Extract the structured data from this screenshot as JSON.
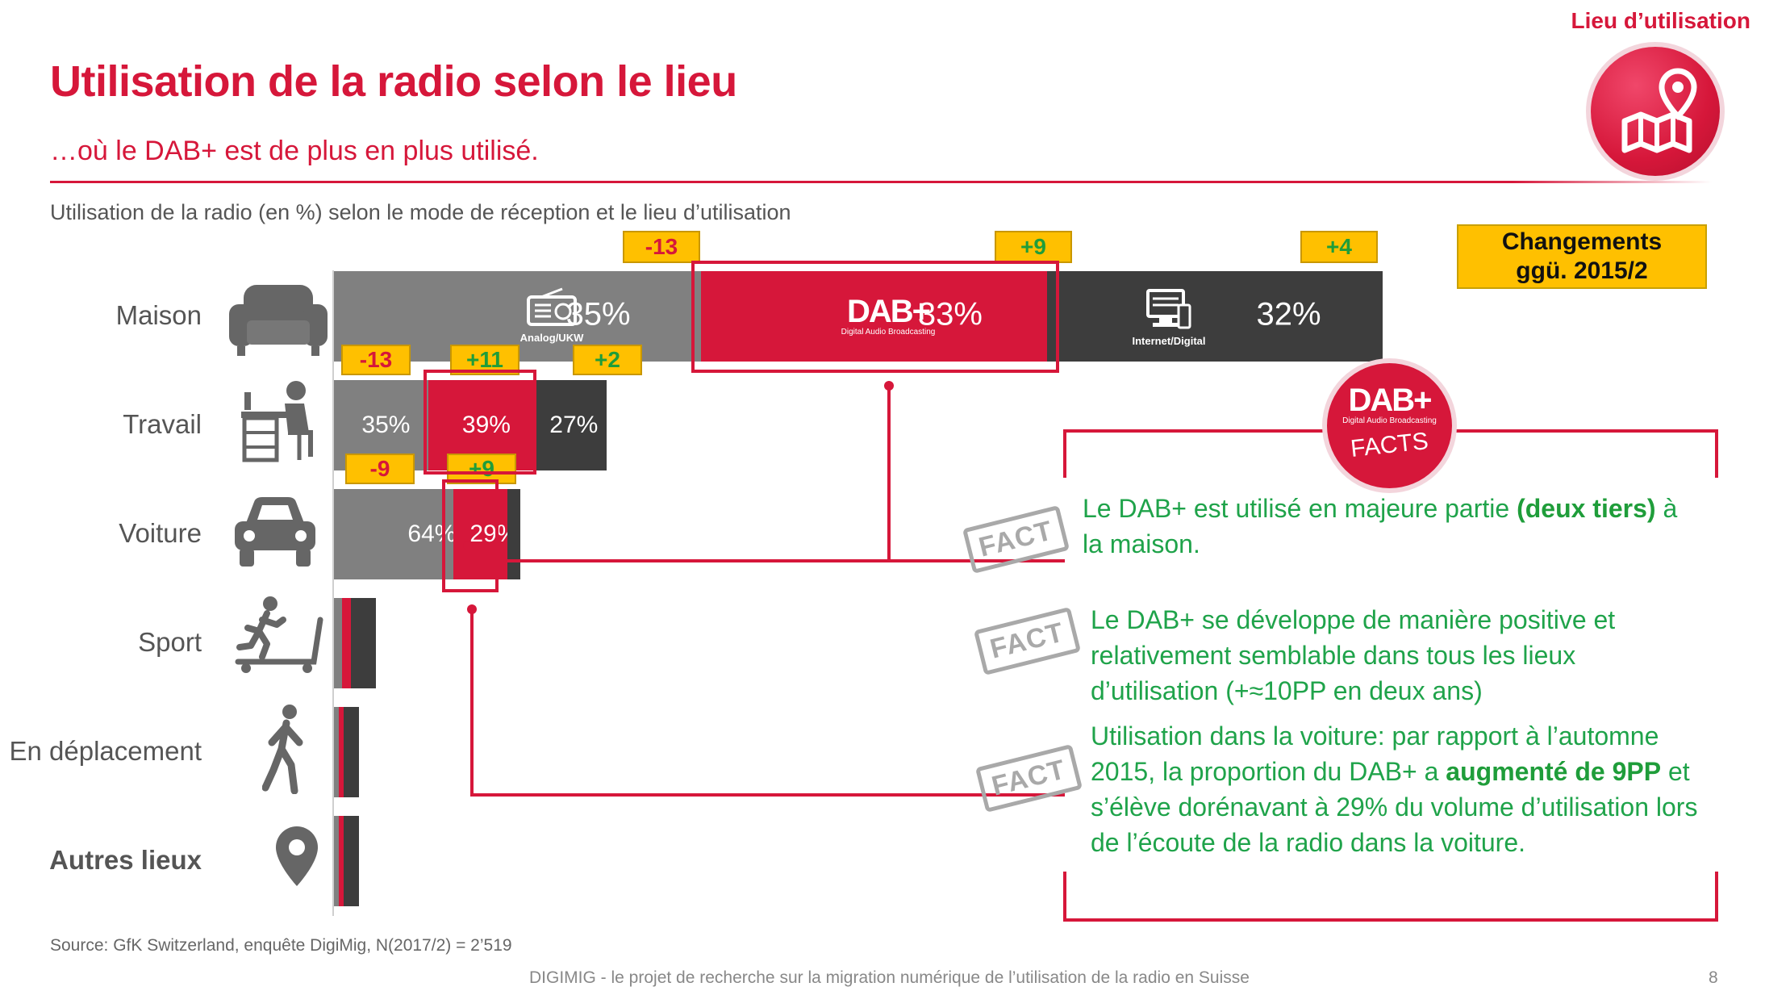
{
  "corner_label": "Lieu d’utilisation",
  "title": "Utilisation de la radio selon le lieu",
  "subtitle": "…où le DAB+ est de plus en plus utilisé.",
  "caption": "Utilisation de la radio (en %) selon le mode de réception et le lieu d’utilisation",
  "changes_box": {
    "line1": "Changements",
    "line2": "ggü. 2015/2"
  },
  "icons": {
    "corner": "map-pin-icon",
    "rows": [
      "sofa-icon",
      "desk-worker-icon",
      "car-icon",
      "treadmill-icon",
      "walking-person-icon",
      "location-pin-icon"
    ],
    "analog": "radio-icon",
    "digital": "computer-icon"
  },
  "segment_captions": {
    "analog": "Analog/UKW",
    "dab_logo": "DAB+",
    "dab_tagline": "Digital Audio Broadcasting",
    "digital": "Internet/Digital"
  },
  "colors": {
    "analog": "#808080",
    "dab": "#d6173a",
    "digital": "#3d3d3d",
    "change_box": "#ffc000",
    "positive": "#1f9d3a",
    "negative": "#d6173a"
  },
  "chart_data": {
    "type": "bar",
    "orientation": "horizontal",
    "stacked": true,
    "categories": [
      "Maison",
      "Travail",
      "Voiture",
      "Sport",
      "En déplacement",
      "Autres lieux"
    ],
    "category_totals_relative": [
      1.0,
      0.26,
      0.178,
      0.04,
      0.024,
      0.024
    ],
    "series": [
      {
        "name": "Analog/UKW",
        "values": [
          35,
          35,
          64,
          null,
          null,
          null
        ],
        "changes": [
          "-13",
          "-13",
          "-9",
          null,
          null,
          null
        ]
      },
      {
        "name": "DAB+",
        "values": [
          33,
          39,
          29,
          null,
          null,
          null
        ],
        "changes": [
          "+9",
          "+11",
          "+9",
          null,
          null,
          null
        ]
      },
      {
        "name": "Internet/Digital",
        "values": [
          32,
          27,
          7,
          null,
          null,
          null
        ],
        "changes": [
          "+4",
          "+2",
          null,
          null,
          null,
          null
        ]
      }
    ],
    "value_labels": [
      [
        "35%",
        "33%",
        "32%"
      ],
      [
        "35%",
        "39%",
        "27%"
      ],
      [
        "64%",
        "29%",
        ""
      ],
      [
        "",
        "",
        ""
      ],
      [
        "",
        "",
        ""
      ],
      [
        "",
        "",
        ""
      ]
    ]
  },
  "facts_badge": {
    "logo": "DAB+",
    "tagline": "Digital Audio Broadcasting",
    "word": "FACTS"
  },
  "stamp_text": "FACT",
  "facts": [
    {
      "before": "Le DAB+ est utilisé en majeure partie ",
      "bold": "(deux tiers)",
      "after": " à la maison."
    },
    {
      "before": "Le DAB+ se développe de manière positive et relativement semblable dans tous les lieux d’utilisation (+≈10PP en deux ans)",
      "bold": "",
      "after": ""
    },
    {
      "before": "Utilisation dans la voiture: par rapport à l’automne 2015, la proportion du DAB+ a ",
      "bold": "augmenté de 9PP",
      "after": " et s’élève dorénavant à 29% du volume d’utilisation lors de l’écoute de la radio dans la voiture."
    }
  ],
  "source": "Source: GfK Switzerland, enquête DigiMig, N(2017/2) = 2’519",
  "footer": "DIGIMIG - le projet de recherche sur la migration numérique de l’utilisation de la radio en Suisse",
  "page_number": "8"
}
